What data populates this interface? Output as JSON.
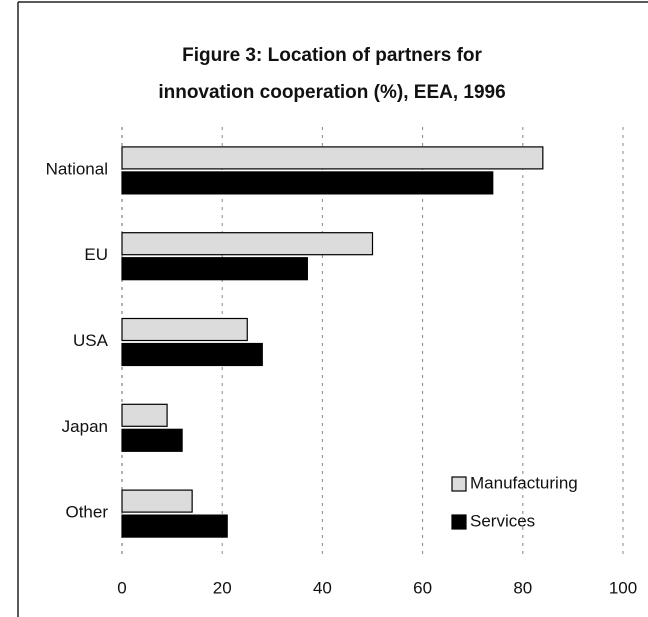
{
  "chart_data": {
    "type": "hbar",
    "title": [
      "Figure  3: Location of partners for",
      "innovation cooperation (%), EEA, 1996"
    ],
    "categories": [
      "National",
      "EU",
      "USA",
      "Japan",
      "Other"
    ],
    "series": [
      {
        "name": "Manufacturing",
        "color": "#dcdcdc",
        "values": [
          84,
          50,
          25,
          9,
          14
        ]
      },
      {
        "name": "Services",
        "color": "#000000",
        "values": [
          74,
          37,
          28,
          12,
          21
        ]
      }
    ],
    "xlim": [
      0,
      100
    ],
    "xticks": [
      0,
      20,
      40,
      60,
      80,
      100
    ],
    "grid": true,
    "legend": "lower right"
  }
}
